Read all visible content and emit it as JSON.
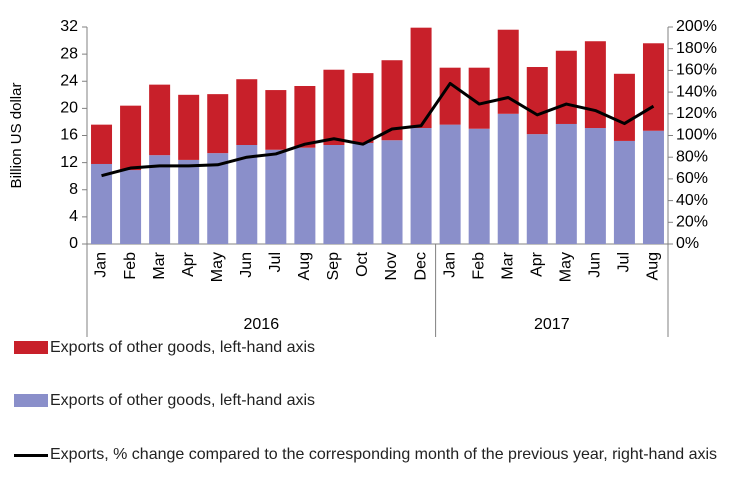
{
  "chart_data": {
    "type": "bar",
    "y_label": "Billion US dollar",
    "categories": [
      "Jan",
      "Feb",
      "Mar",
      "Apr",
      "May",
      "Jun",
      "Jul",
      "Aug",
      "Sep",
      "Oct",
      "Nov",
      "Dec",
      "Jan",
      "Feb",
      "Mar",
      "Apr",
      "May",
      "Jun",
      "Jul",
      "Aug"
    ],
    "groups": [
      {
        "name": "2016",
        "count": 12
      },
      {
        "name": "2017",
        "count": 8
      }
    ],
    "series": [
      {
        "name": "Exports of other goods, left-hand axis",
        "color": "#8a8fca",
        "type": "bar",
        "values": [
          11.8,
          10.9,
          13.1,
          12.4,
          13.4,
          14.6,
          13.9,
          14.2,
          14.6,
          14.9,
          15.3,
          17.1,
          17.6,
          17.0,
          19.2,
          16.2,
          17.7,
          17.1,
          15.2,
          16.7
        ]
      },
      {
        "name": "Exports of other goods, left-hand axis",
        "color": "#c8202a",
        "type": "bar",
        "values": [
          5.8,
          9.5,
          10.4,
          9.6,
          8.7,
          9.7,
          8.8,
          9.1,
          11.1,
          10.3,
          11.8,
          14.8,
          8.4,
          9.0,
          12.4,
          9.9,
          10.8,
          12.8,
          9.9,
          12.9
        ]
      },
      {
        "name": "Exports, % change compared to the corresponding month of the previous year, right-hand axis",
        "color": "#000000",
        "type": "line",
        "axis": "y2",
        "values": [
          63,
          70,
          72,
          72,
          73,
          80,
          83,
          92,
          97,
          92,
          106,
          109,
          148,
          129,
          135,
          119,
          129,
          123,
          111,
          127
        ]
      }
    ],
    "ylim": [
      0,
      32
    ],
    "yticks": [
      0,
      4,
      8,
      12,
      16,
      20,
      24,
      28,
      32
    ],
    "y2lim": [
      0,
      200
    ],
    "y2ticks": [
      {
        "value": 0,
        "label": "0%"
      },
      {
        "value": 20,
        "label": "20%"
      },
      {
        "value": 40,
        "label": "40%"
      },
      {
        "value": 60,
        "label": "60%"
      },
      {
        "value": 80,
        "label": "80%"
      },
      {
        "value": 100,
        "label": "100%"
      },
      {
        "value": 120,
        "label": "120%"
      },
      {
        "value": 140,
        "label": "140%"
      },
      {
        "value": 160,
        "label": "160%"
      },
      {
        "value": 180,
        "label": "180%"
      },
      {
        "value": 200,
        "label": "200%"
      }
    ],
    "stacked": true,
    "grid": false
  }
}
